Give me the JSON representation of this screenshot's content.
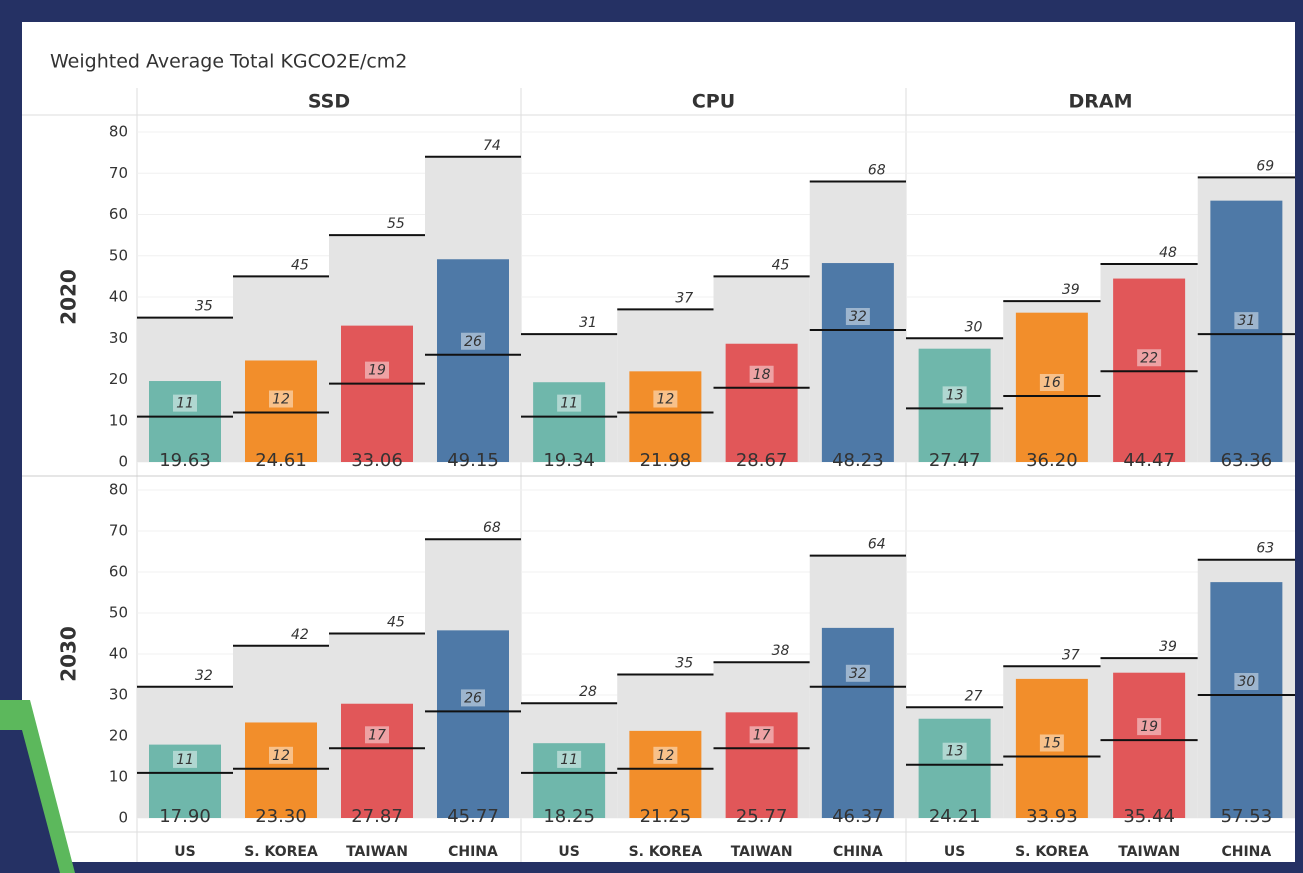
{
  "chart_data": {
    "type": "bar",
    "title": "Weighted Average Total KGCO2E/cm2",
    "columns": [
      "SSD",
      "CPU",
      "DRAM"
    ],
    "rows": [
      "2020",
      "2030"
    ],
    "categories": [
      "US",
      "S. KOREA",
      "TAIWAN",
      "CHINA"
    ],
    "colors": [
      "#6fb7ab",
      "#f28e2b",
      "#e15759",
      "#4e79a7"
    ],
    "ylim": [
      0,
      80
    ],
    "yticks": [
      0,
      10,
      20,
      30,
      40,
      50,
      60,
      70,
      80
    ],
    "grid": true,
    "panels": [
      [
        {
          "values": [
            19.63,
            24.61,
            33.06,
            49.15
          ],
          "value_labels": [
            "19.63",
            "24.61",
            "33.06",
            "49.15"
          ],
          "low": [
            11,
            12,
            19,
            26
          ],
          "high": [
            35,
            45,
            55,
            74
          ]
        },
        {
          "values": [
            19.34,
            21.98,
            28.67,
            48.23
          ],
          "value_labels": [
            "19.34",
            "21.98",
            "28.67",
            "48.23"
          ],
          "low": [
            11,
            12,
            18,
            32
          ],
          "high": [
            31,
            37,
            45,
            68
          ]
        },
        {
          "values": [
            27.47,
            36.2,
            44.47,
            63.36
          ],
          "value_labels": [
            "27.47",
            "36.20",
            "44.47",
            "63.36"
          ],
          "low": [
            13,
            16,
            22,
            31
          ],
          "high": [
            30,
            39,
            48,
            69
          ]
        }
      ],
      [
        {
          "values": [
            17.9,
            23.3,
            27.87,
            45.77
          ],
          "value_labels": [
            "17.90",
            "23.30",
            "27.87",
            "45.77"
          ],
          "low": [
            11,
            12,
            17,
            26
          ],
          "high": [
            32,
            42,
            45,
            68
          ]
        },
        {
          "values": [
            18.25,
            21.25,
            25.77,
            46.37
          ],
          "value_labels": [
            "18.25",
            "21.25",
            "25.77",
            "46.37"
          ],
          "low": [
            11,
            12,
            17,
            32
          ],
          "high": [
            28,
            35,
            38,
            64
          ]
        },
        {
          "values": [
            24.21,
            33.93,
            35.44,
            57.53
          ],
          "value_labels": [
            "24.21",
            "33.93",
            "35.44",
            "57.53"
          ],
          "low": [
            13,
            15,
            19,
            30
          ],
          "high": [
            27,
            37,
            39,
            63
          ]
        }
      ]
    ]
  }
}
